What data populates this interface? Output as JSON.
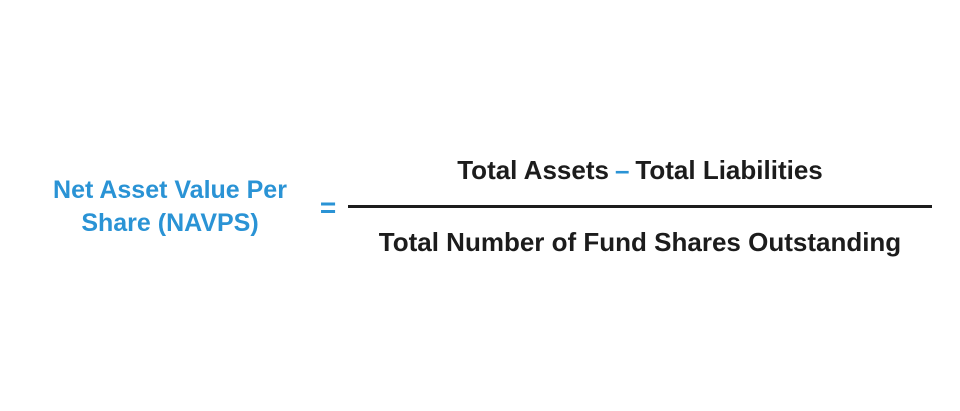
{
  "lhs": {
    "line1": "Net Asset Value Per",
    "line2": "Share (NAVPS)"
  },
  "equals": "=",
  "numerator": {
    "term1": "Total Assets",
    "operator": "–",
    "term2": "Total Liabilities"
  },
  "denominator": "Total Number of Fund Shares Outstanding",
  "colors": {
    "accent": "#2a93d5",
    "text": "#1c1c1c",
    "background": "#ffffff"
  }
}
